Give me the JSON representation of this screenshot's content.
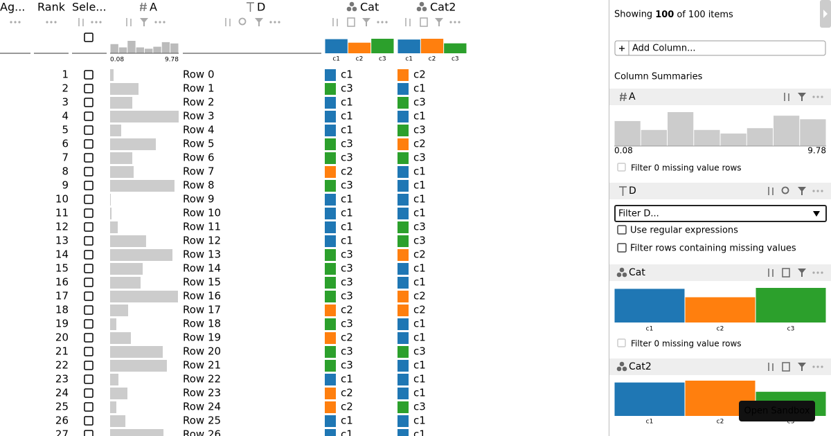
{
  "header": {
    "columns": [
      "Ag...",
      "Rank",
      "Sele...",
      "A",
      "D",
      "Cat",
      "Cat2"
    ]
  },
  "category_names": [
    "c1",
    "c2",
    "c3"
  ],
  "category_colors": [
    "#1f77b4",
    "#ff7f0e",
    "#2ca02c"
  ],
  "a_hist": {
    "counts": [
      14,
      9,
      19,
      9,
      7,
      10,
      17,
      15
    ],
    "min": 0.08,
    "max": 9.78
  },
  "cat_counts": [
    36,
    27,
    37
  ],
  "cat2_counts": [
    36,
    38,
    26
  ],
  "rows": [
    {
      "rank": 1,
      "a": 0.57,
      "d": "Row 0",
      "cat": "c1",
      "cat2": "c2"
    },
    {
      "rank": 2,
      "a": 4.1,
      "d": "Row 1",
      "cat": "c3",
      "cat2": "c1"
    },
    {
      "rank": 3,
      "a": 3.22,
      "d": "Row 2",
      "cat": "c1",
      "cat2": "c3"
    },
    {
      "rank": 4,
      "a": 9.78,
      "d": "Row 3",
      "cat": "c1",
      "cat2": "c1"
    },
    {
      "rank": 5,
      "a": 1.65,
      "d": "Row 4",
      "cat": "c1",
      "cat2": "c3"
    },
    {
      "rank": 6,
      "a": 6.55,
      "d": "Row 5",
      "cat": "c3",
      "cat2": "c2"
    },
    {
      "rank": 7,
      "a": 3.22,
      "d": "Row 6",
      "cat": "c3",
      "cat2": "c3"
    },
    {
      "rank": 8,
      "a": 3.41,
      "d": "Row 7",
      "cat": "c2",
      "cat2": "c1"
    },
    {
      "rank": 9,
      "a": 9.19,
      "d": "Row 8",
      "cat": "c3",
      "cat2": "c1"
    },
    {
      "rank": 10,
      "a": 0.18,
      "d": "Row 9",
      "cat": "c1",
      "cat2": "c1"
    },
    {
      "rank": 11,
      "a": 0.28,
      "d": "Row 10",
      "cat": "c1",
      "cat2": "c1"
    },
    {
      "rank": 12,
      "a": 1.16,
      "d": "Row 11",
      "cat": "c1",
      "cat2": "c3"
    },
    {
      "rank": 13,
      "a": 5.17,
      "d": "Row 12",
      "cat": "c1",
      "cat2": "c3"
    },
    {
      "rank": 14,
      "a": 8.9,
      "d": "Row 13",
      "cat": "c3",
      "cat2": "c2"
    },
    {
      "rank": 15,
      "a": 4.69,
      "d": "Row 14",
      "cat": "c3",
      "cat2": "c1"
    },
    {
      "rank": 16,
      "a": 4.39,
      "d": "Row 15",
      "cat": "c3",
      "cat2": "c1"
    },
    {
      "rank": 17,
      "a": 9.68,
      "d": "Row 16",
      "cat": "c3",
      "cat2": "c2"
    },
    {
      "rank": 18,
      "a": 2.63,
      "d": "Row 17",
      "cat": "c2",
      "cat2": "c2"
    },
    {
      "rank": 19,
      "a": 0.96,
      "d": "Row 18",
      "cat": "c3",
      "cat2": "c1"
    },
    {
      "rank": 20,
      "a": 3.02,
      "d": "Row 19",
      "cat": "c2",
      "cat2": "c1"
    },
    {
      "rank": 21,
      "a": 7.53,
      "d": "Row 20",
      "cat": "c3",
      "cat2": "c3"
    },
    {
      "rank": 22,
      "a": 8.11,
      "d": "Row 21",
      "cat": "c3",
      "cat2": "c1"
    },
    {
      "rank": 23,
      "a": 1.26,
      "d": "Row 22",
      "cat": "c1",
      "cat2": "c1"
    },
    {
      "rank": 24,
      "a": 2.53,
      "d": "Row 23",
      "cat": "c2",
      "cat2": "c1"
    },
    {
      "rank": 25,
      "a": 0.96,
      "d": "Row 24",
      "cat": "c2",
      "cat2": "c3"
    },
    {
      "rank": 26,
      "a": 2.24,
      "d": "Row 25",
      "cat": "c1",
      "cat2": "c1"
    },
    {
      "rank": 27,
      "a": 7.63,
      "d": "Row 26",
      "cat": "c1",
      "cat2": "c1"
    }
  ],
  "panel": {
    "showing": {
      "start": "Showing",
      "shown": 100,
      "mid": "of",
      "total": 100,
      "end": "items"
    },
    "add_column": "Add Column...",
    "summaries_title": "Column Summaries",
    "filter_missing": "Filter 0 missing value rows",
    "filter_placeholder": "Filter D...",
    "regex": "Use regular expressions",
    "missing_rows": "Filter rows containing missing values"
  },
  "tooltip": "Open Sandbox"
}
